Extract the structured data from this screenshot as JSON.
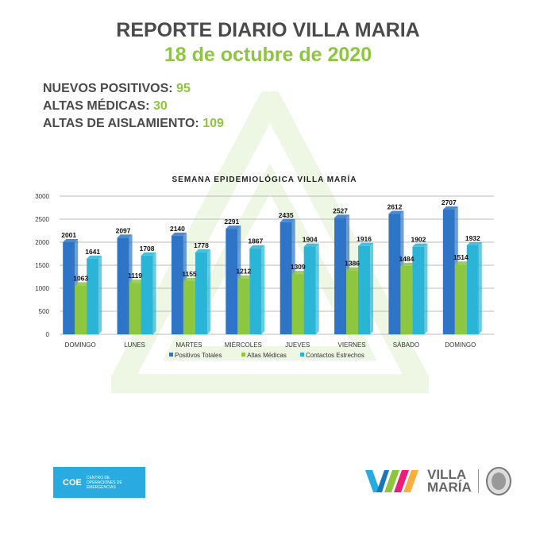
{
  "header": {
    "title": "REPORTE DIARIO VILLA MARIA",
    "date": "18 de octubre de 2020"
  },
  "stats": [
    {
      "label": "NUEVOS POSITIVOS:",
      "value": "95"
    },
    {
      "label": "ALTAS MÉDICAS:",
      "value": "30"
    },
    {
      "label": "ALTAS DE AISLAMIENTO:",
      "value": "109"
    }
  ],
  "chart_data": {
    "type": "bar",
    "title": "SEMANA EPIDEMIOLÓGICA VILLA MARÍA",
    "categories": [
      "DOMINGO",
      "LUNES",
      "MARTES",
      "MIÉRCOLES",
      "JUEVES",
      "VIERNES",
      "SÁBADO",
      "DOMINGO"
    ],
    "series": [
      {
        "name": "Positivos Totales",
        "color": "#2e75c8",
        "values": [
          2001,
          2097,
          2140,
          2291,
          2435,
          2527,
          2612,
          2707
        ]
      },
      {
        "name": "Altas Médicas",
        "color": "#8dc63f",
        "values": [
          1063,
          1119,
          1155,
          1212,
          1309,
          1386,
          1484,
          1514
        ]
      },
      {
        "name": "Contactos Estrechos",
        "color": "#2ab4d6",
        "values": [
          1641,
          1708,
          1778,
          1867,
          1904,
          1916,
          1902,
          1932
        ]
      }
    ],
    "ylim": [
      0,
      3000
    ],
    "yticks": [
      0,
      500,
      1000,
      1500,
      2000,
      2500,
      3000
    ],
    "grid": true,
    "legend": "bottom"
  },
  "footer": {
    "coe_abbr": "COE",
    "coe_name": "CENTRO DE OPERACIONES DE EMERGENCIAS",
    "city_line1": "VILLA",
    "city_line2": "MARÍA"
  }
}
